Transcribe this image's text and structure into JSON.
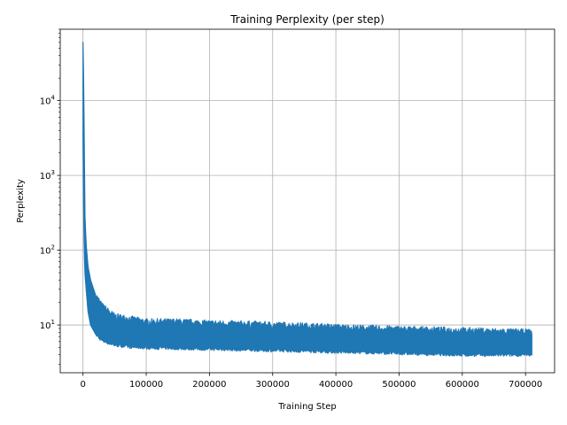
{
  "chart_data": {
    "type": "line",
    "title": "Training Perplexity (per step)",
    "xlabel": "Training Step",
    "ylabel": "Perplexity",
    "xlim": [
      -36000,
      746000
    ],
    "ylim": [
      2.3,
      90000
    ],
    "yscale": "log",
    "grid": true,
    "legend": "none",
    "series_color": "#1f77b4",
    "x_ticks": [
      0,
      100000,
      200000,
      300000,
      400000,
      500000,
      600000,
      700000
    ],
    "x_tick_labels": [
      "0",
      "100000",
      "200000",
      "300000",
      "400000",
      "500000",
      "600000",
      "700000"
    ],
    "y_ticks": [
      10,
      100,
      1000,
      10000
    ],
    "y_tick_labels": [
      "10^1",
      "10^2",
      "10^3",
      "10^4"
    ],
    "series": [
      {
        "x": [
          0,
          1000,
          2000,
          3000,
          5000,
          8000,
          12000,
          20000,
          30000,
          50000,
          75000,
          100000,
          150000,
          200000,
          250000,
          300000,
          350000,
          400000,
          450000,
          500000,
          550000,
          600000,
          650000,
          700000,
          710000
        ],
        "upper": [
          60000,
          20000,
          3000,
          300,
          120,
          60,
          40,
          25,
          18,
          13,
          12,
          11,
          11,
          10.5,
          10.3,
          10,
          9.7,
          9.3,
          9,
          8.8,
          8.6,
          8.4,
          8.2,
          8,
          8
        ],
        "lower": [
          3000,
          300,
          100,
          50,
          30,
          15,
          10,
          7.5,
          6.2,
          5.4,
          5.1,
          5,
          4.9,
          4.8,
          4.7,
          4.6,
          4.5,
          4.4,
          4.3,
          4.2,
          4.1,
          4,
          4,
          4,
          4
        ]
      }
    ]
  }
}
